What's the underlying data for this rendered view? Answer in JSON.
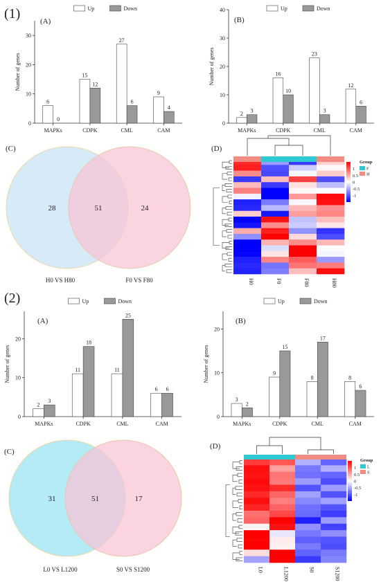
{
  "section_labels": [
    "(1)",
    "(2)"
  ],
  "legend": {
    "up": "Up",
    "down": "Down"
  },
  "chart_data": [
    {
      "type": "bar",
      "panel": "(A)",
      "section": "(1)",
      "categories": [
        "MAPKs",
        "CDPK",
        "CML",
        "CAM"
      ],
      "series": [
        {
          "name": "Up",
          "values": [
            6,
            15,
            27,
            9
          ],
          "color": "#ffffff"
        },
        {
          "name": "Down",
          "values": [
            0,
            12,
            6,
            4
          ],
          "color": "#999999"
        }
      ],
      "ylabel": "Number of genes",
      "ylim": [
        0,
        35
      ],
      "yticks": [
        0,
        10,
        20,
        30
      ],
      "legend_position": "top"
    },
    {
      "type": "bar",
      "panel": "(B)",
      "section": "(1)",
      "categories": [
        "MAPKs",
        "CDPK",
        "CML",
        "CAM"
      ],
      "series": [
        {
          "name": "Up",
          "values": [
            2,
            16,
            23,
            12
          ],
          "color": "#ffffff"
        },
        {
          "name": "Down",
          "values": [
            3,
            10,
            3,
            6
          ],
          "color": "#999999"
        }
      ],
      "ylabel": "Number of genes",
      "ylim": [
        0,
        40
      ],
      "yticks": [
        0,
        10,
        20,
        30,
        40
      ],
      "legend_position": "top"
    },
    {
      "type": "bar",
      "panel": "(A)",
      "section": "(2)",
      "categories": [
        "MAPKs",
        "CDPK",
        "CML",
        "CAM"
      ],
      "series": [
        {
          "name": "Up",
          "values": [
            2,
            11,
            11,
            6
          ],
          "color": "#ffffff"
        },
        {
          "name": "Down",
          "values": [
            3,
            18,
            25,
            6
          ],
          "color": "#999999"
        }
      ],
      "ylabel": "Number of genes",
      "ylim": [
        0,
        27
      ],
      "yticks": [
        0,
        10,
        20
      ],
      "legend_position": "top"
    },
    {
      "type": "bar",
      "panel": "(B)",
      "section": "(2)",
      "categories": [
        "MAPKs",
        "CDPK",
        "CML",
        "CAM"
      ],
      "series": [
        {
          "name": "Up",
          "values": [
            3,
            9,
            8,
            8
          ],
          "color": "#ffffff"
        },
        {
          "name": "Down",
          "values": [
            2,
            15,
            17,
            6
          ],
          "color": "#999999"
        }
      ],
      "ylabel": "Number of genes",
      "ylim": [
        0,
        24
      ],
      "yticks": [
        0,
        10,
        20
      ],
      "legend_position": "top"
    },
    {
      "type": "venn",
      "panel": "(C)",
      "section": "(1)",
      "sets": [
        {
          "label": "H0 VS H80",
          "only": 28,
          "color": "#cfe6f6"
        },
        {
          "label": "F0 VS F80",
          "only": 24,
          "color": "#f9c2d4"
        }
      ],
      "overlap": 51
    },
    {
      "type": "venn",
      "panel": "(C)",
      "section": "(2)",
      "sets": [
        {
          "label": "L0 VS L1200",
          "only": 31,
          "color": "#a8e6f6"
        },
        {
          "label": "S0 VS S1200",
          "only": 17,
          "color": "#f9c2d4"
        }
      ],
      "overlap": 51
    },
    {
      "type": "heatmap",
      "panel": "(D)",
      "section": "(1)",
      "columns": [
        "H0",
        "F0",
        "F80",
        "H80"
      ],
      "column_groups": [
        "H",
        "F",
        "F",
        "H"
      ],
      "legend_title": "Group",
      "groups": [
        {
          "name": "F",
          "color": "#2ecad4"
        },
        {
          "name": "H",
          "color": "#f28b82"
        }
      ],
      "scale_ticks": [
        "1",
        "0.5",
        "0",
        "-0.5",
        "-1"
      ],
      "scale_range": [
        -1.5,
        1.5
      ],
      "colors": {
        "low": "#0000ff",
        "mid": "#ffffff",
        "high": "#ff0000"
      },
      "column_profiles": [
        [
          1.5,
          1.2,
          0.8,
          -1.4,
          0.4,
          1.0,
          -0.2,
          -1.2,
          -1.5,
          0.3,
          -1.3,
          -1.5,
          0.6,
          -0.9,
          -1.5,
          -1.4,
          -1.6,
          -1.2,
          -1.5,
          -1.3
        ],
        [
          -0.6,
          -0.8,
          -1.2,
          0.5,
          -1.4,
          -1.5,
          -1.6,
          -0.9,
          -0.3,
          -1.6,
          1.4,
          0.9,
          1.2,
          1.6,
          0.2,
          -0.2,
          0.4,
          0.6,
          -0.7,
          -1.0
        ],
        [
          -1.4,
          -0.3,
          0.2,
          1.0,
          0.3,
          -0.2,
          0.6,
          0.2,
          0.3,
          0.7,
          -0.6,
          -0.3,
          -0.4,
          0.1,
          0.8,
          1.4,
          1.5,
          1.2,
          0.7,
          0.5
        ],
        [
          0.4,
          -0.2,
          0.3,
          -0.8,
          -0.5,
          0.1,
          1.2,
          1.4,
          0.9,
          0.6,
          0.5,
          -0.1,
          -1.2,
          -0.8,
          0.3,
          0.1,
          -0.3,
          -0.6,
          1.0,
          1.3
        ]
      ]
    },
    {
      "type": "heatmap",
      "panel": "(D)",
      "section": "(2)",
      "columns": [
        "L0",
        "L1200",
        "S0",
        "S1200"
      ],
      "column_groups": [
        "L",
        "L",
        "S",
        "S"
      ],
      "legend_title": "Group",
      "groups": [
        {
          "name": "L",
          "color": "#2ecad4"
        },
        {
          "name": "S",
          "color": "#f28b82"
        }
      ],
      "scale_ticks": [
        "1",
        "0.5",
        "0",
        "-0.5",
        "-1"
      ],
      "scale_range": [
        -1.5,
        1.5
      ],
      "colors": {
        "low": "#0000ff",
        "mid": "#ffffff",
        "high": "#ff0000"
      },
      "column_profiles": [
        [
          1.4,
          1.3,
          1.5,
          1.2,
          1.4,
          1.5,
          1.3,
          1.4,
          0.6,
          0.9,
          0.3,
          1.5,
          1.6,
          1.4,
          0.2,
          -0.3
        ],
        [
          1.0,
          0.8,
          0.7,
          0.9,
          1.0,
          0.9,
          1.0,
          0.8,
          1.2,
          1.3,
          1.4,
          0.1,
          0.0,
          0.2,
          1.6,
          1.7
        ],
        [
          -0.7,
          -0.8,
          -0.6,
          -0.7,
          -0.9,
          -0.8,
          -0.7,
          -0.6,
          -1.0,
          -1.2,
          -0.9,
          -0.8,
          -0.7,
          -0.9,
          -0.8,
          -1.4
        ],
        [
          -0.8,
          -0.7,
          -0.9,
          -0.8,
          -0.7,
          -0.9,
          -0.8,
          -1.0,
          -0.9,
          -0.7,
          -1.0,
          -0.9,
          -1.0,
          -0.8,
          -0.9,
          -0.6
        ]
      ]
    }
  ]
}
